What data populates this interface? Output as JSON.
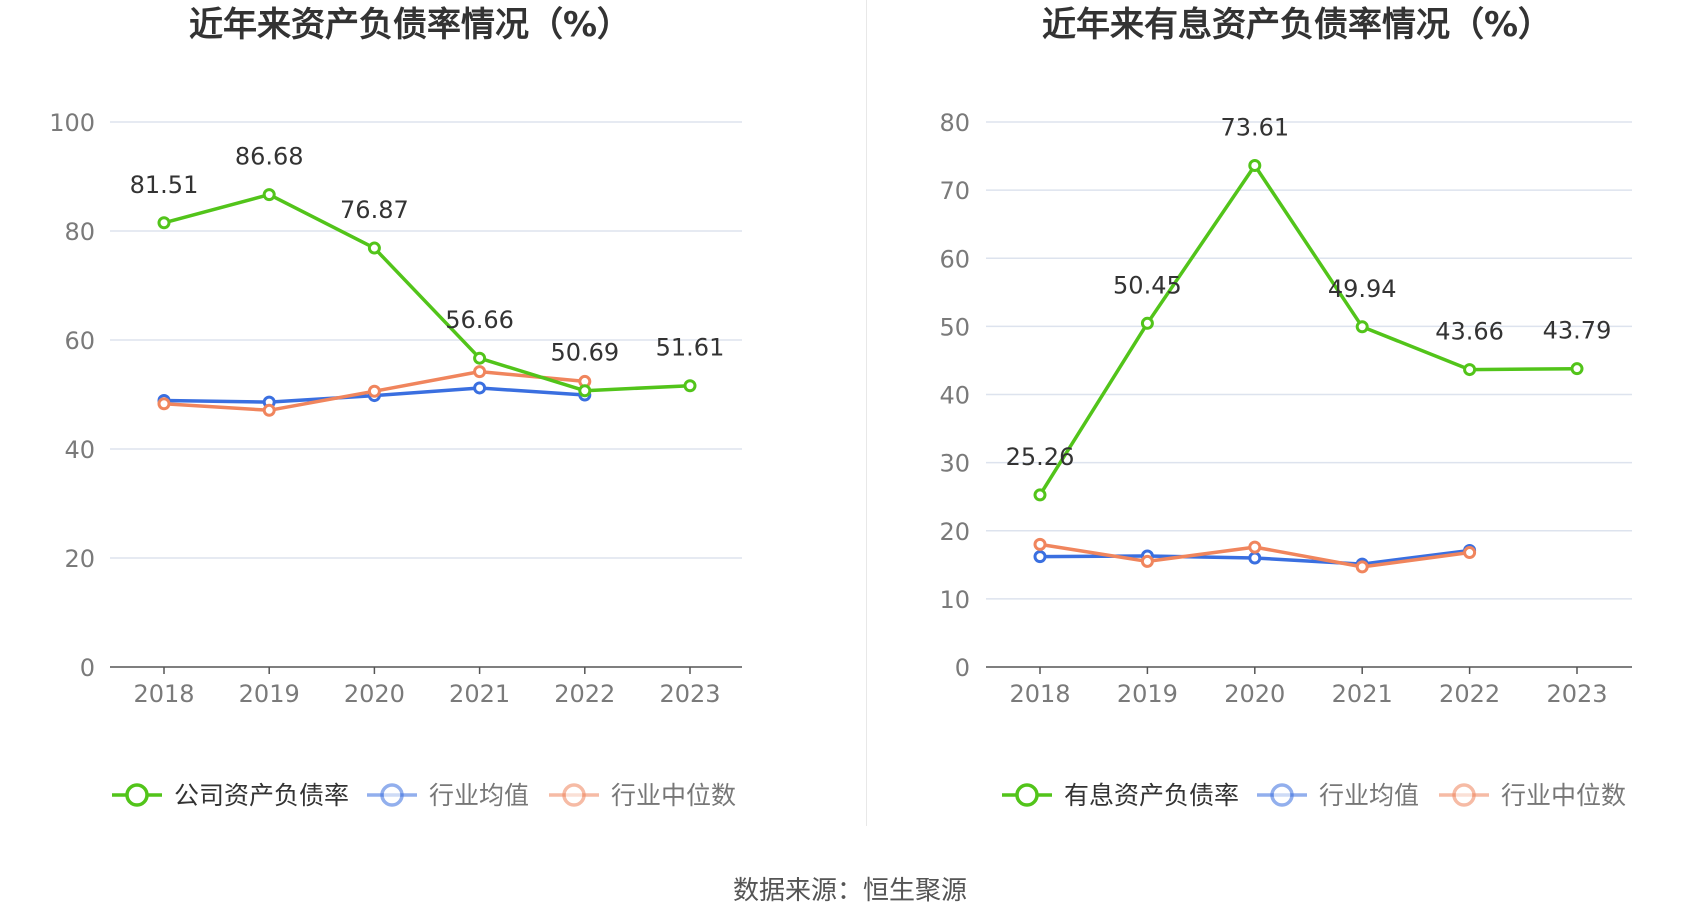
{
  "footer": {
    "source": "数据来源：恒生聚源"
  },
  "colors": {
    "company": "#52c41a",
    "average": "#3a6fe0",
    "median": "#f0855d",
    "grid": "#dde3ee",
    "axis": "#555555",
    "tick": "#7a7a7a"
  },
  "chart_data": [
    {
      "type": "line",
      "title": "近年来资产负债率情况（%）",
      "categories": [
        "2018",
        "2019",
        "2020",
        "2021",
        "2022",
        "2023"
      ],
      "ylim": [
        0,
        100
      ],
      "yticks": [
        0,
        20,
        40,
        60,
        80,
        100
      ],
      "grid": true,
      "legend_position": "bottom",
      "series": [
        {
          "name": "公司资产负债率",
          "color": "#52c41a",
          "labels": true,
          "values": [
            81.51,
            86.68,
            76.87,
            56.66,
            50.69,
            51.61
          ]
        },
        {
          "name": "行业均值",
          "color": "#3a6fe0",
          "labels": false,
          "values": [
            48.9,
            48.6,
            49.8,
            51.2,
            49.9,
            null
          ]
        },
        {
          "name": "行业中位数",
          "color": "#f0855d",
          "labels": false,
          "values": [
            48.3,
            47.1,
            50.6,
            54.2,
            52.4,
            null
          ]
        }
      ]
    },
    {
      "type": "line",
      "title": "近年来有息资产负债率情况（%）",
      "categories": [
        "2018",
        "2019",
        "2020",
        "2021",
        "2022",
        "2023"
      ],
      "ylim": [
        0,
        80
      ],
      "yticks": [
        0,
        10,
        20,
        30,
        40,
        50,
        60,
        70,
        80
      ],
      "grid": true,
      "legend_position": "bottom",
      "series": [
        {
          "name": "有息资产负债率",
          "color": "#52c41a",
          "labels": true,
          "values": [
            25.26,
            50.45,
            73.61,
            49.94,
            43.66,
            43.79
          ]
        },
        {
          "name": "行业均值",
          "color": "#3a6fe0",
          "labels": false,
          "values": [
            16.2,
            16.3,
            16.0,
            15.1,
            17.1,
            null
          ]
        },
        {
          "name": "行业中位数",
          "color": "#f0855d",
          "labels": false,
          "values": [
            18.0,
            15.5,
            17.6,
            14.7,
            16.8,
            null
          ]
        }
      ]
    }
  ]
}
